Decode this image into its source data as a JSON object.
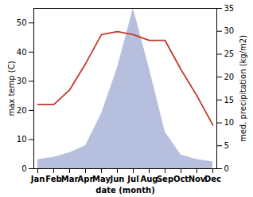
{
  "chart_data": {
    "type": "line",
    "categories": [
      "Jan",
      "Feb",
      "Mar",
      "Apr",
      "May",
      "Jun",
      "Jul",
      "Aug",
      "Sep",
      "Oct",
      "Nov",
      "Dec"
    ],
    "xlabel": "date (month)",
    "ylabel": "max temp (C)",
    "y2label": "med. precipitation (kg/m2)",
    "series": [
      {
        "type": "area",
        "color": "#aab4d8",
        "axis": "y2",
        "values": [
          2.0,
          2.5,
          3.5,
          5.0,
          12.0,
          22.0,
          35.0,
          22.0,
          8.0,
          3.0,
          2.0,
          1.5
        ]
      },
      {
        "type": "line",
        "color": "#c0392b",
        "values": [
          22,
          22,
          27,
          36,
          46,
          47,
          46,
          44,
          44,
          34,
          25,
          15
        ]
      }
    ],
    "ylim": [
      0,
      55
    ],
    "yticks": [
      0,
      10,
      20,
      30,
      40,
      50
    ],
    "y2lim": [
      0,
      35
    ],
    "y2ticks": [
      0,
      5,
      10,
      15,
      20,
      25,
      30,
      35
    ],
    "grid": false
  }
}
